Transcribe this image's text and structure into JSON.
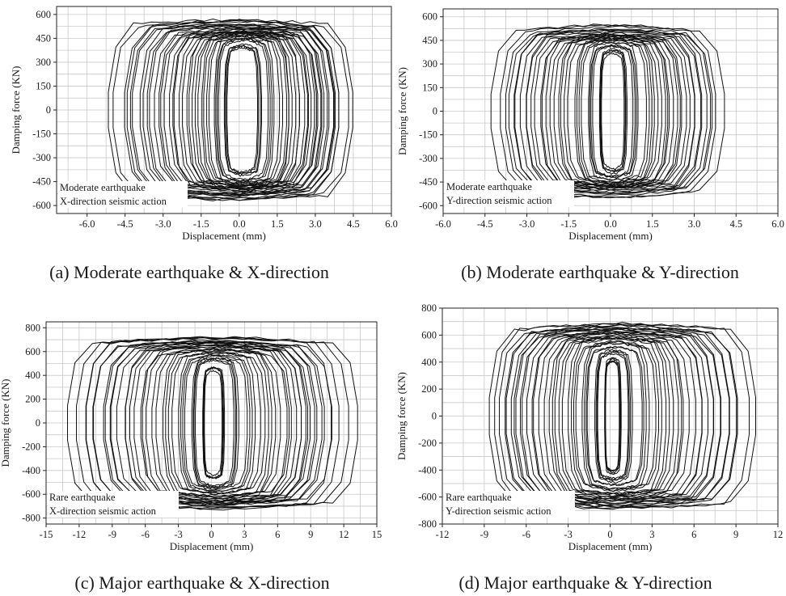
{
  "colors": {
    "line": "#111111",
    "grid": "#c8c8c8",
    "background": "#ffffff"
  },
  "chart_data": [
    {
      "type": "line",
      "caption": "(a) Moderate earthquake & X-direction",
      "xlabel": "Displacement (mm)",
      "ylabel": "Damping force (KN)",
      "xlim": [
        -7.2,
        6.0
      ],
      "ylim": [
        -650,
        650
      ],
      "xticks": [
        -6.0,
        -4.5,
        -3.0,
        -1.5,
        0.0,
        1.5,
        3.0,
        4.5,
        6.0
      ],
      "xtick_labels": [
        "-6.0",
        "-4.5",
        "-3.0",
        "-1.5",
        "0.0",
        "1.5",
        "3.0",
        "4.5",
        "6.0"
      ],
      "yticks": [
        600,
        450,
        300,
        150,
        0,
        -150,
        -300,
        -450,
        -600
      ],
      "ytick_labels": [
        "600",
        "450",
        "300",
        "150",
        "0",
        "-150",
        "-300",
        "-450",
        "-600"
      ],
      "annotation": [
        "Moderate earthquake",
        "X-direction seismic action"
      ],
      "grid": true,
      "series_description": "hysteresis loops",
      "loops": [
        {
          "x_min": -5.3,
          "x_max": 4.6,
          "f_max": 580
        },
        {
          "x_min": -4.5,
          "x_max": 4.0,
          "f_max": 560
        },
        {
          "x_min": -3.8,
          "x_max": 3.8,
          "f_max": 540
        },
        {
          "x_min": -3.2,
          "x_max": 3.3,
          "f_max": 520
        },
        {
          "x_min": -2.6,
          "x_max": 3.0,
          "f_max": 510
        },
        {
          "x_min": -2.0,
          "x_max": 2.4,
          "f_max": 500
        },
        {
          "x_min": -1.5,
          "x_max": 2.0,
          "f_max": 490
        },
        {
          "x_min": -1.0,
          "x_max": 1.4,
          "f_max": 470
        },
        {
          "x_min": -0.6,
          "x_max": 0.9,
          "f_max": 420
        }
      ]
    },
    {
      "type": "line",
      "caption": "(b) Moderate earthquake & Y-direction",
      "xlabel": "Displacement (mm)",
      "ylabel": "Damping force (KN)",
      "xlim": [
        -6.0,
        6.0
      ],
      "ylim": [
        -650,
        650
      ],
      "xticks": [
        -6.0,
        -4.5,
        -3.0,
        -1.5,
        0.0,
        1.5,
        3.0,
        4.5,
        6.0
      ],
      "xtick_labels": [
        "-6.0",
        "-4.5",
        "-3.0",
        "-1.5",
        "0.0",
        "1.5",
        "3.0",
        "4.5",
        "6.0"
      ],
      "yticks": [
        600,
        450,
        300,
        150,
        0,
        -150,
        -300,
        -450,
        -600
      ],
      "ytick_labels": [
        "600",
        "450",
        "300",
        "150",
        "0",
        "-150",
        "-300",
        "-450",
        "-600"
      ],
      "annotation": [
        "Moderate earthquake",
        "Y-direction seismic action"
      ],
      "grid": true,
      "series_description": "hysteresis loops",
      "loops": [
        {
          "x_min": -4.3,
          "x_max": 4.1,
          "f_max": 560
        },
        {
          "x_min": -3.7,
          "x_max": 3.7,
          "f_max": 530
        },
        {
          "x_min": -3.1,
          "x_max": 3.1,
          "f_max": 510
        },
        {
          "x_min": -2.5,
          "x_max": 2.6,
          "f_max": 500
        },
        {
          "x_min": -1.9,
          "x_max": 2.1,
          "f_max": 490
        },
        {
          "x_min": -1.3,
          "x_max": 1.6,
          "f_max": 470
        },
        {
          "x_min": -0.8,
          "x_max": 1.0,
          "f_max": 440
        },
        {
          "x_min": -0.4,
          "x_max": 0.6,
          "f_max": 400
        }
      ]
    },
    {
      "type": "line",
      "caption": "(c) Major earthquake & X-direction",
      "xlabel": "Displacement (mm)",
      "ylabel": "Damping force (KN)",
      "xlim": [
        -15,
        15
      ],
      "ylim": [
        -850,
        850
      ],
      "xticks": [
        -15,
        -12,
        -9,
        -6,
        -3,
        0,
        3,
        6,
        9,
        12,
        15
      ],
      "xtick_labels": [
        "-15",
        "-12",
        "-9",
        "-6",
        "-3",
        "0",
        "3",
        "6",
        "9",
        "12",
        "15"
      ],
      "yticks": [
        800,
        600,
        400,
        200,
        0,
        -200,
        -400,
        -600,
        -800
      ],
      "ytick_labels": [
        "800",
        "600",
        "400",
        "200",
        "0",
        "-200",
        "-400",
        "-600",
        "-800"
      ],
      "annotation": [
        "Rare earthquake",
        "X-direction seismic action"
      ],
      "grid": true,
      "series_description": "hysteresis loops",
      "loops": [
        {
          "x_min": -13.2,
          "x_max": 13.4,
          "f_max": 740
        },
        {
          "x_min": -11.5,
          "x_max": 11.0,
          "f_max": 720
        },
        {
          "x_min": -9.8,
          "x_max": 10.2,
          "f_max": 700
        },
        {
          "x_min": -8.0,
          "x_max": 8.8,
          "f_max": 680
        },
        {
          "x_min": -6.3,
          "x_max": 7.3,
          "f_max": 660
        },
        {
          "x_min": -4.5,
          "x_max": 5.6,
          "f_max": 640
        },
        {
          "x_min": -3.0,
          "x_max": 4.0,
          "f_max": 600
        },
        {
          "x_min": -1.8,
          "x_max": 2.5,
          "f_max": 560
        },
        {
          "x_min": -0.8,
          "x_max": 1.2,
          "f_max": 480
        }
      ]
    },
    {
      "type": "line",
      "caption": "(d) Major earthquake & Y-direction",
      "xlabel": "Displacement (mm)",
      "ylabel": "Damping force (KN)",
      "xlim": [
        -12,
        12
      ],
      "ylim": [
        -800,
        800
      ],
      "xticks": [
        -12,
        -9,
        -6,
        -3,
        0,
        3,
        6,
        9,
        12
      ],
      "xtick_labels": [
        "-12",
        "-9",
        "-6",
        "-3",
        "0",
        "3",
        "6",
        "9",
        "12"
      ],
      "yticks": [
        800,
        600,
        400,
        200,
        0,
        -200,
        -400,
        -600,
        -800
      ],
      "ytick_labels": [
        "800",
        "600",
        "400",
        "200",
        "0",
        "-200",
        "-400",
        "-600",
        "-800"
      ],
      "annotation": [
        "Rare earthquake",
        "Y-direction seismic action"
      ],
      "grid": true,
      "series_description": "hysteresis loops",
      "loops": [
        {
          "x_min": -8.8,
          "x_max": 10.6,
          "f_max": 700
        },
        {
          "x_min": -8.0,
          "x_max": 9.2,
          "f_max": 680
        },
        {
          "x_min": -6.8,
          "x_max": 8.0,
          "f_max": 660
        },
        {
          "x_min": -5.5,
          "x_max": 6.6,
          "f_max": 640
        },
        {
          "x_min": -4.2,
          "x_max": 5.2,
          "f_max": 620
        },
        {
          "x_min": -3.0,
          "x_max": 4.0,
          "f_max": 590
        },
        {
          "x_min": -2.0,
          "x_max": 2.8,
          "f_max": 550
        },
        {
          "x_min": -1.1,
          "x_max": 1.6,
          "f_max": 500
        },
        {
          "x_min": -0.4,
          "x_max": 0.8,
          "f_max": 430
        }
      ]
    }
  ]
}
